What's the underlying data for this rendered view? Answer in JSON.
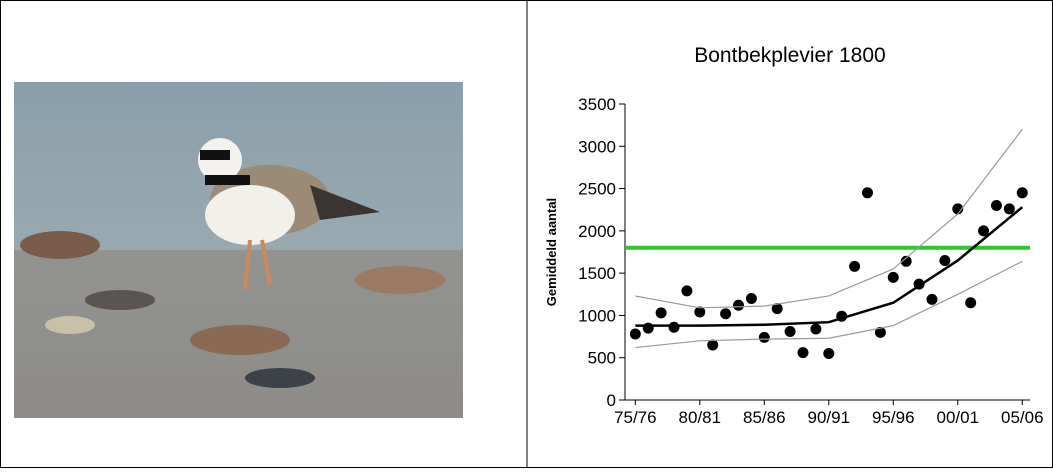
{
  "chart_data": {
    "type": "scatter",
    "title": "Bontbekplevier 1800",
    "y_label": "Gemiddeld aantal",
    "xlim": [
      1974.2,
      2005.6
    ],
    "ylim": [
      0,
      3500
    ],
    "xticks": [
      {
        "value": 1975,
        "label": "75/76"
      },
      {
        "value": 1980,
        "label": "80/81"
      },
      {
        "value": 1985,
        "label": "85/86"
      },
      {
        "value": 1990,
        "label": "90/91"
      },
      {
        "value": 1995,
        "label": "95/96"
      },
      {
        "value": 2000,
        "label": "00/01"
      },
      {
        "value": 2005,
        "label": "05/06"
      }
    ],
    "yticks": [
      0,
      500,
      1000,
      1500,
      2000,
      2500,
      3000,
      3500
    ],
    "reference_line": {
      "value": 1800,
      "color": "#2ec82e"
    },
    "series": [
      {
        "type": "scatter",
        "color": "#000000",
        "x": [
          1975,
          1976,
          1977,
          1978,
          1979,
          1980,
          1981,
          1982,
          1983,
          1984,
          1985,
          1986,
          1987,
          1988,
          1989,
          1990,
          1991,
          1992,
          1993,
          1994,
          1995,
          1996,
          1997,
          1998,
          1999,
          2000,
          2001,
          2002,
          2003,
          2004,
          2005
        ],
        "values": [
          780,
          850,
          1030,
          860,
          1290,
          1040,
          650,
          1020,
          1120,
          1200,
          740,
          1080,
          810,
          560,
          840,
          550,
          990,
          1580,
          2450,
          800,
          1450,
          1640,
          1370,
          1190,
          1650,
          2260,
          1150,
          2000,
          2300,
          2260,
          2450
        ]
      },
      {
        "type": "line",
        "color": "#000000",
        "width": 2.5,
        "x": [
          1975,
          1980,
          1985,
          1990,
          1995,
          2000,
          2005
        ],
        "values": [
          880,
          880,
          890,
          920,
          1150,
          1650,
          2280
        ]
      },
      {
        "type": "line",
        "color": "#999999",
        "width": 1.2,
        "x": [
          1975,
          1980,
          1985,
          1990,
          1995,
          2000,
          2005
        ],
        "values": [
          1230,
          1090,
          1110,
          1230,
          1550,
          2200,
          3200
        ]
      },
      {
        "type": "line",
        "color": "#999999",
        "width": 1.2,
        "x": [
          1975,
          1980,
          1985,
          1990,
          1995,
          2000,
          2005
        ],
        "values": [
          620,
          700,
          720,
          730,
          880,
          1250,
          1640
        ]
      }
    ]
  }
}
